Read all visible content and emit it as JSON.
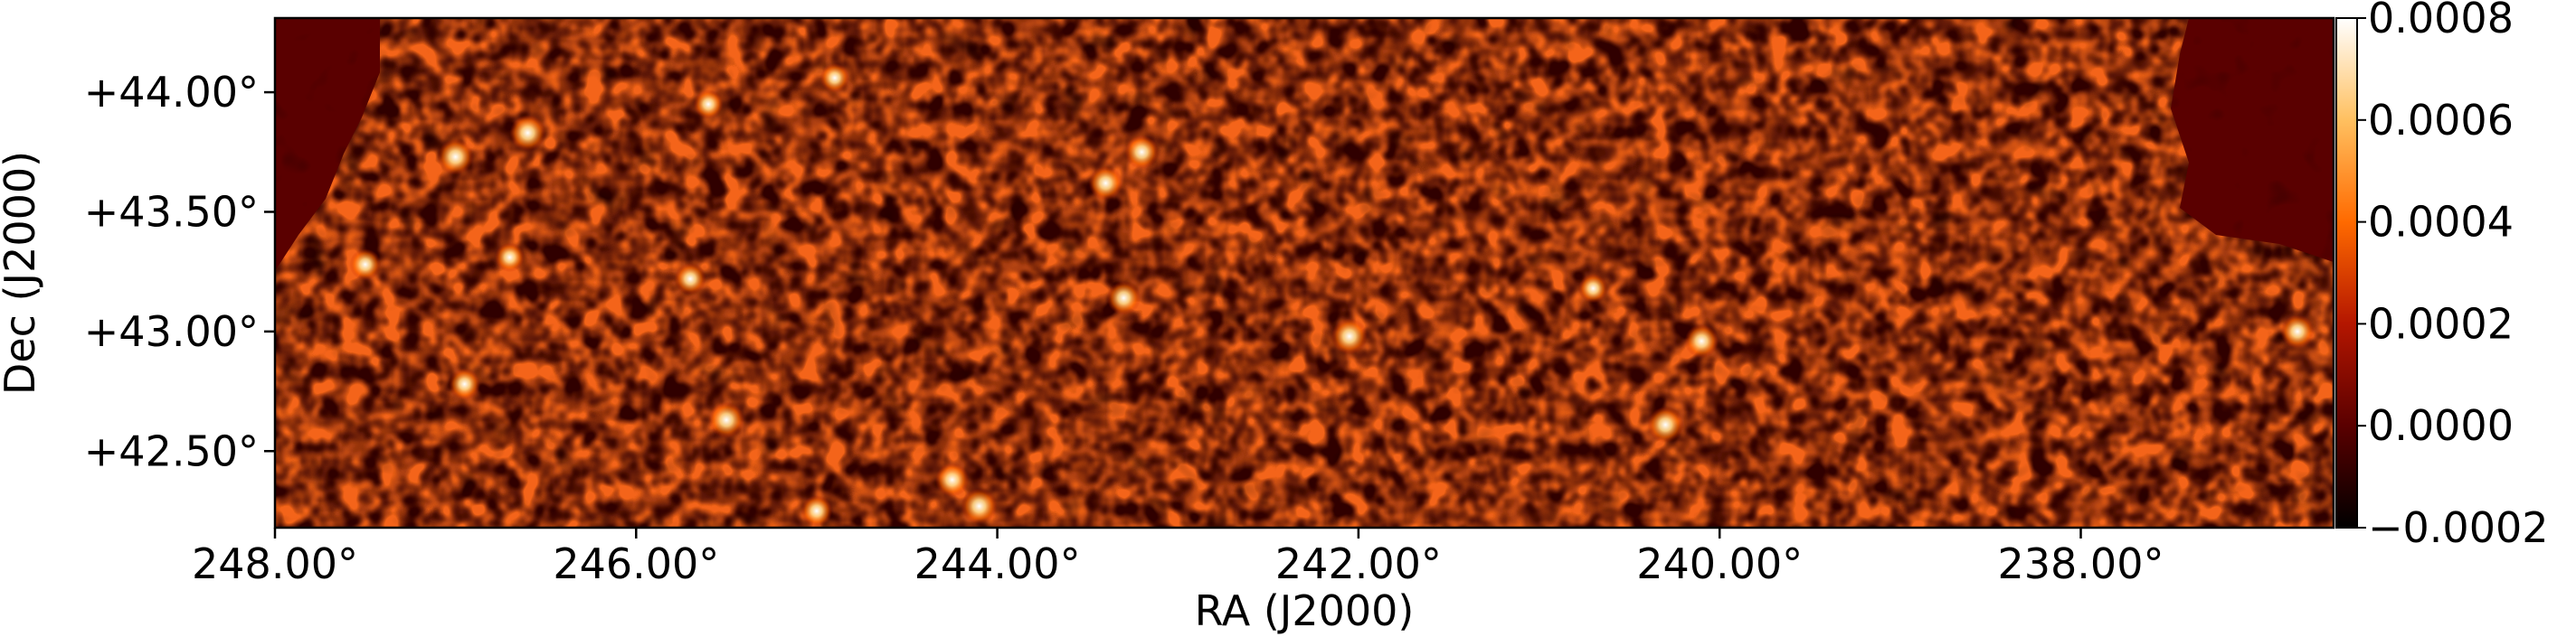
{
  "chart_data": {
    "type": "heatmap",
    "title": "",
    "xlabel": "RA (J2000)",
    "ylabel": "Dec (J2000)",
    "x_axis": {
      "range": [
        248.0,
        236.6
      ],
      "direction": "decreasing",
      "ticks": [
        {
          "value": 248.0,
          "label": "248.00°"
        },
        {
          "value": 246.0,
          "label": "246.00°"
        },
        {
          "value": 244.0,
          "label": "244.00°"
        },
        {
          "value": 242.0,
          "label": "242.00°"
        },
        {
          "value": 240.0,
          "label": "240.00°"
        },
        {
          "value": 238.0,
          "label": "238.00°"
        }
      ]
    },
    "y_axis": {
      "range": [
        42.18,
        44.31
      ],
      "ticks": [
        {
          "value": 42.5,
          "label": "+42.50°"
        },
        {
          "value": 43.0,
          "label": "+43.00°"
        },
        {
          "value": 43.5,
          "label": "+43.50°"
        },
        {
          "value": 44.0,
          "label": "+44.00°"
        }
      ]
    },
    "colorbar": {
      "colormap": "gist_heat",
      "range": [
        -0.0002,
        0.0008
      ],
      "ticks": [
        {
          "value": -0.0002,
          "label": "−0.0002"
        },
        {
          "value": 0.0,
          "label": "0.0000"
        },
        {
          "value": 0.0002,
          "label": "0.0002"
        },
        {
          "value": 0.0004,
          "label": "0.0004"
        },
        {
          "value": 0.0006,
          "label": "0.0006"
        },
        {
          "value": 0.0008,
          "label": "0.0008"
        }
      ],
      "colors": [
        "#000000",
        "#5a0000",
        "#b41600",
        "#ff6a00",
        "#ffc060",
        "#ffffff"
      ]
    },
    "outside_region_color": "#5a0000",
    "bright_sources": [
      {
        "ra": 247.0,
        "dec": 43.73,
        "value": 0.0008
      },
      {
        "ra": 246.6,
        "dec": 43.83,
        "value": 0.0008
      },
      {
        "ra": 245.5,
        "dec": 42.63,
        "value": 0.0008
      },
      {
        "ra": 244.1,
        "dec": 42.27,
        "value": 0.0008
      },
      {
        "ra": 244.25,
        "dec": 42.38,
        "value": 0.0007
      },
      {
        "ra": 243.3,
        "dec": 43.14,
        "value": 0.0007
      },
      {
        "ra": 243.4,
        "dec": 43.62,
        "value": 0.0007
      },
      {
        "ra": 243.2,
        "dec": 43.75,
        "value": 0.0007
      },
      {
        "ra": 242.05,
        "dec": 42.98,
        "value": 0.0008
      },
      {
        "ra": 240.3,
        "dec": 42.61,
        "value": 0.0008
      },
      {
        "ra": 240.1,
        "dec": 42.96,
        "value": 0.0007
      },
      {
        "ra": 236.8,
        "dec": 43.0,
        "value": 0.0007
      },
      {
        "ra": 245.7,
        "dec": 43.22,
        "value": 0.0006
      },
      {
        "ra": 246.95,
        "dec": 42.78,
        "value": 0.0006
      },
      {
        "ra": 247.5,
        "dec": 43.28,
        "value": 0.0006
      },
      {
        "ra": 245.0,
        "dec": 42.25,
        "value": 0.0006
      },
      {
        "ra": 240.7,
        "dec": 43.18,
        "value": 0.0005
      },
      {
        "ra": 245.6,
        "dec": 43.95,
        "value": 0.0005
      },
      {
        "ra": 244.9,
        "dec": 44.06,
        "value": 0.0005
      },
      {
        "ra": 246.7,
        "dec": 43.31,
        "value": 0.0005
      }
    ]
  }
}
